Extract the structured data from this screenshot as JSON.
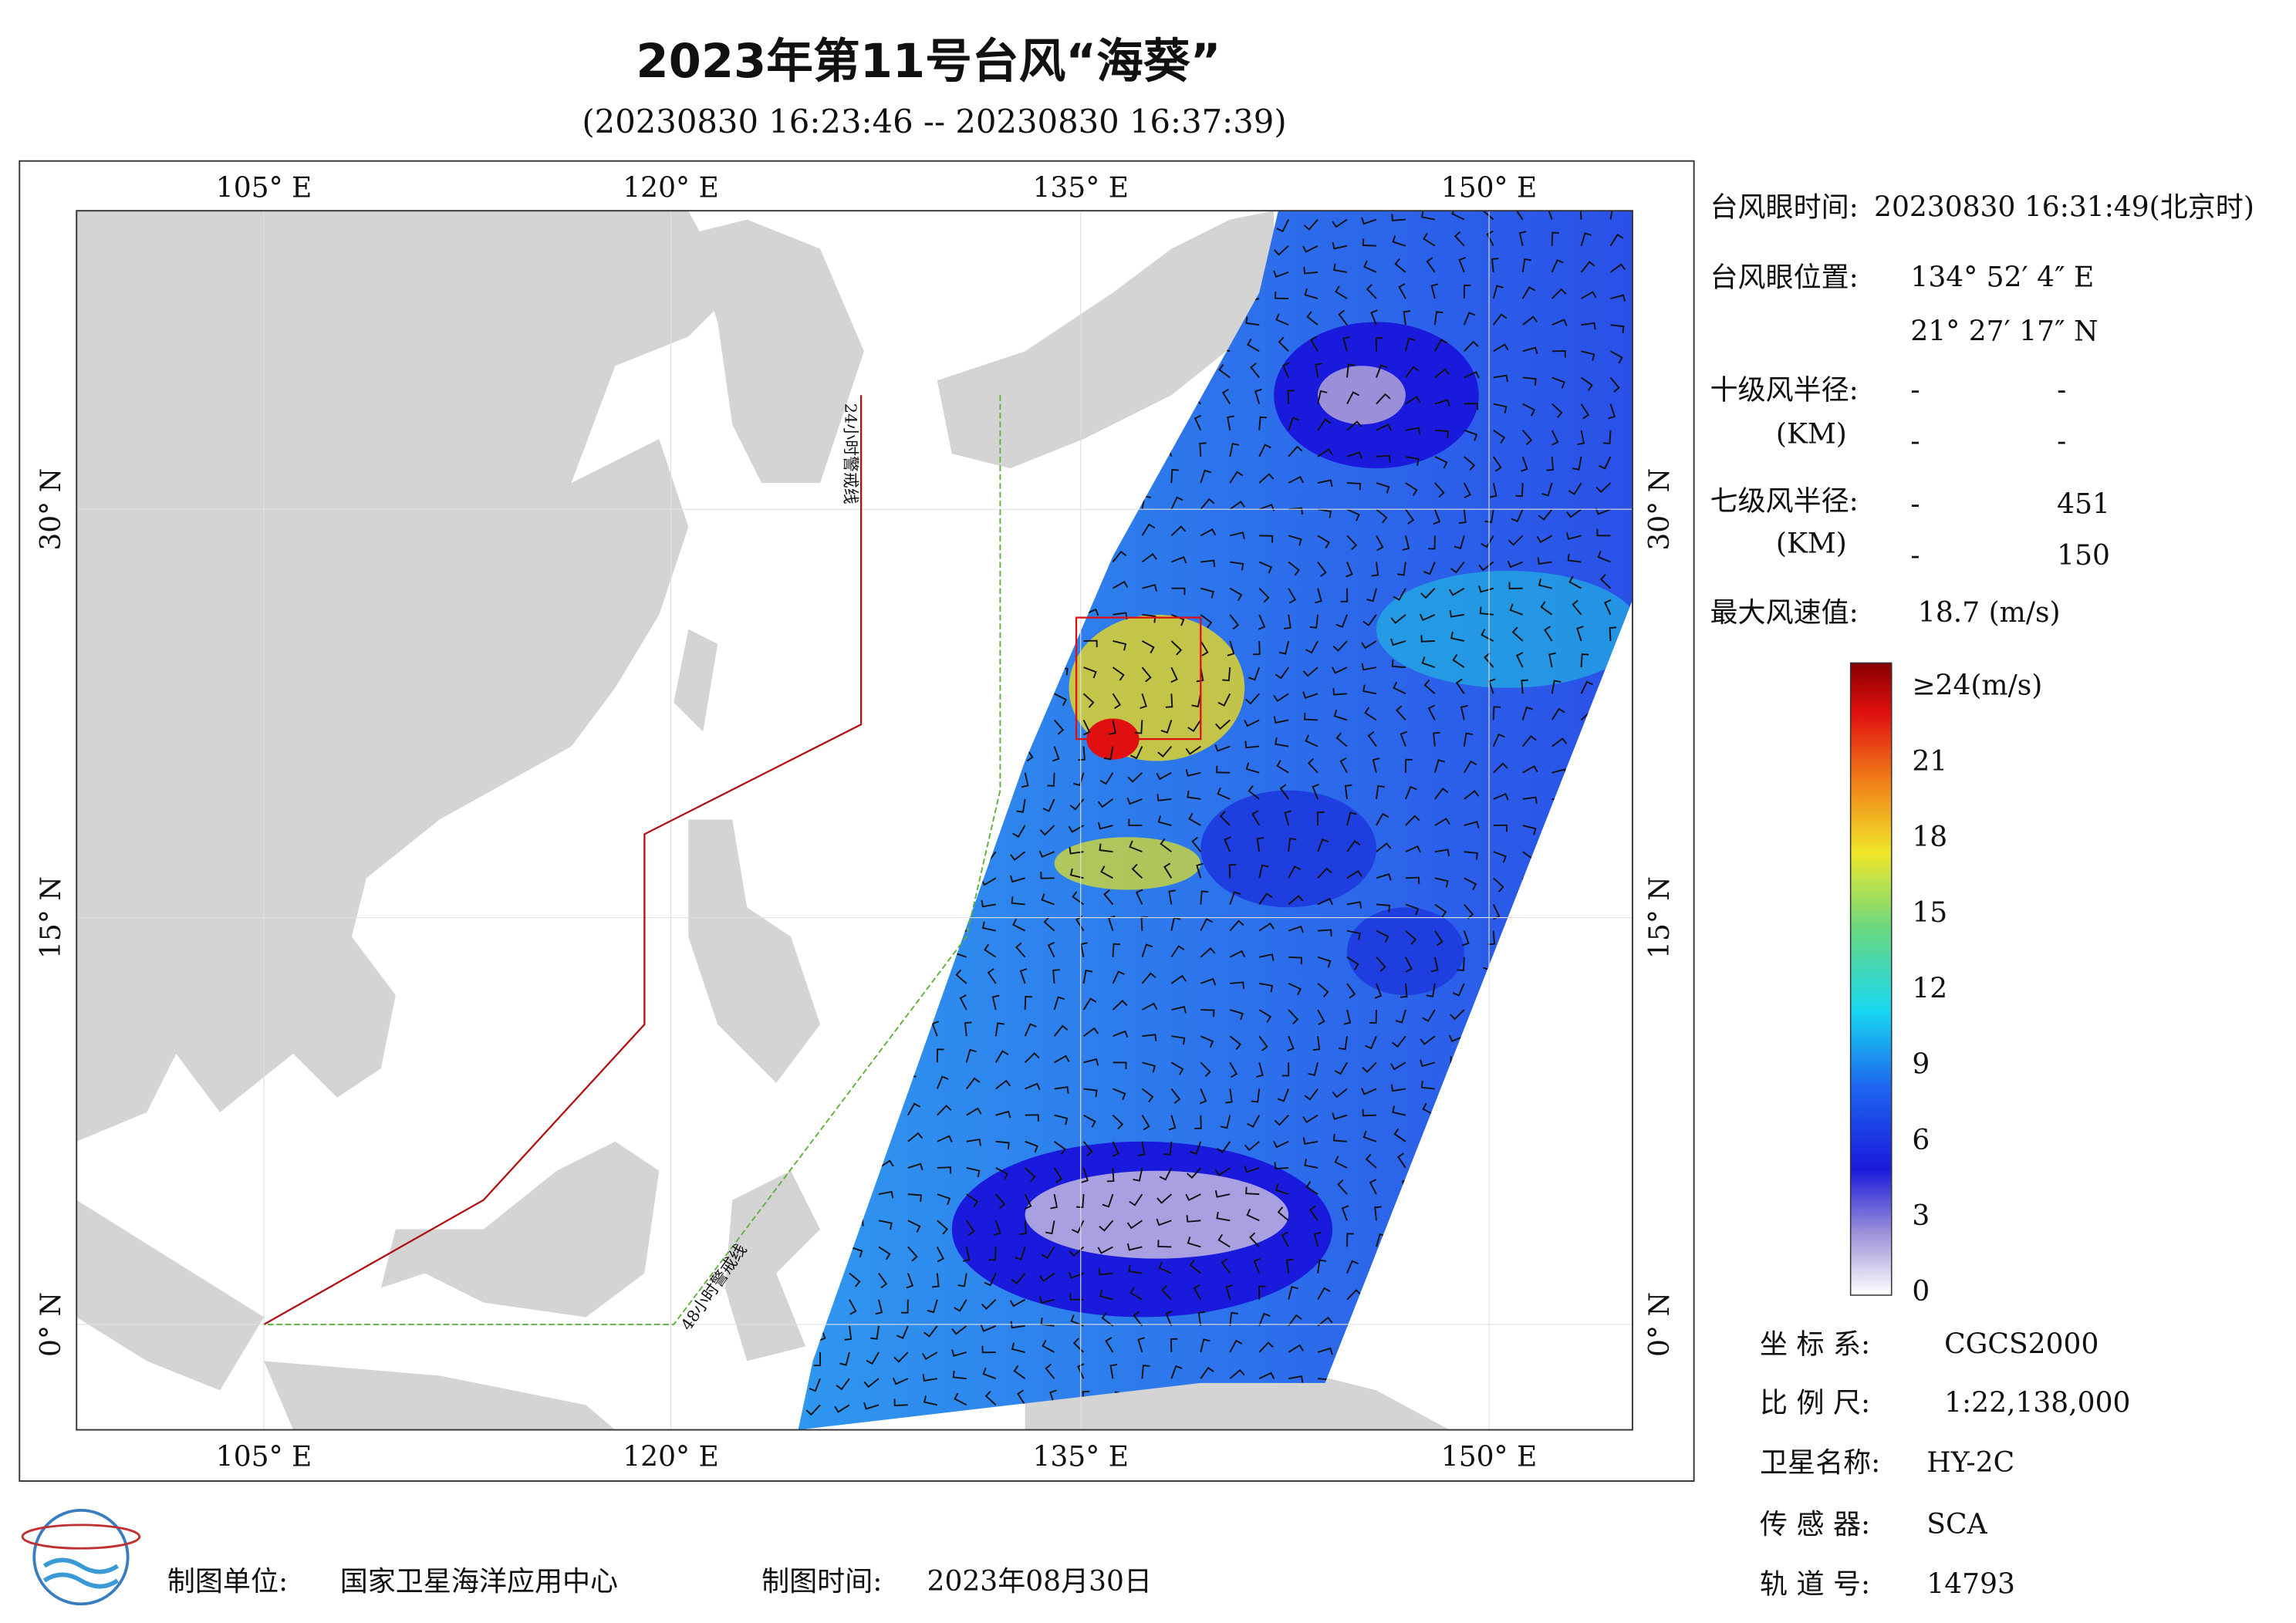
{
  "title": "2023年第11号台风“海葵”",
  "subtitle": "(20230830 16:23:46 -- 20230830 16:37:39)",
  "map": {
    "top_labels": [
      "105° E",
      "120° E",
      "135° E",
      "150° E"
    ],
    "bottom_labels": [
      "105° E",
      "120° E",
      "135° E",
      "150° E"
    ],
    "left_labels": [
      "30° N",
      "15° N",
      "0° N"
    ],
    "right_labels": [
      "30° N",
      "15° N",
      "0° N"
    ],
    "warning_24": "24小时警戒线",
    "warning_48": "48小时警戒线"
  },
  "info": {
    "eye_time_label": "台风眼时间:",
    "eye_time": "20230830 16:31:49(北京时)",
    "eye_pos_label": "台风眼位置:",
    "eye_lon": "134° 52′ 4″ E",
    "eye_lat": "21° 27′ 17″ N",
    "r10_label": "十级风半径:",
    "r10_unit": "(KM)",
    "r10_a": "-",
    "r10_b": "-",
    "r10_c": "-",
    "r10_d": "-",
    "r7_label": "七级风半径:",
    "r7_unit": "(KM)",
    "r7_a": "-",
    "r7_b": "451",
    "r7_c": "-",
    "r7_d": "150",
    "max_label": "最大风速值:",
    "max_value": "18.7 (m/s)"
  },
  "colorbar": {
    "labels": [
      "≥24(m/s)",
      "21",
      "18",
      "15",
      "12",
      "9",
      "6",
      "3",
      "0"
    ]
  },
  "meta": {
    "crs_label": "坐 标 系:",
    "crs": "CGCS2000",
    "scale_label": "比 例 尺:",
    "scale": "1:22,138,000",
    "sat_label": "卫星名称:",
    "sat": "HY-2C",
    "sensor_label": "传 感 器:",
    "sensor": "SCA",
    "orbit_label": "轨 道 号:",
    "orbit": "14793"
  },
  "footer": {
    "unit_label": "制图单位:",
    "unit": "国家卫星海洋应用中心",
    "time_label": "制图时间:",
    "time": "2023年08月30日"
  }
}
